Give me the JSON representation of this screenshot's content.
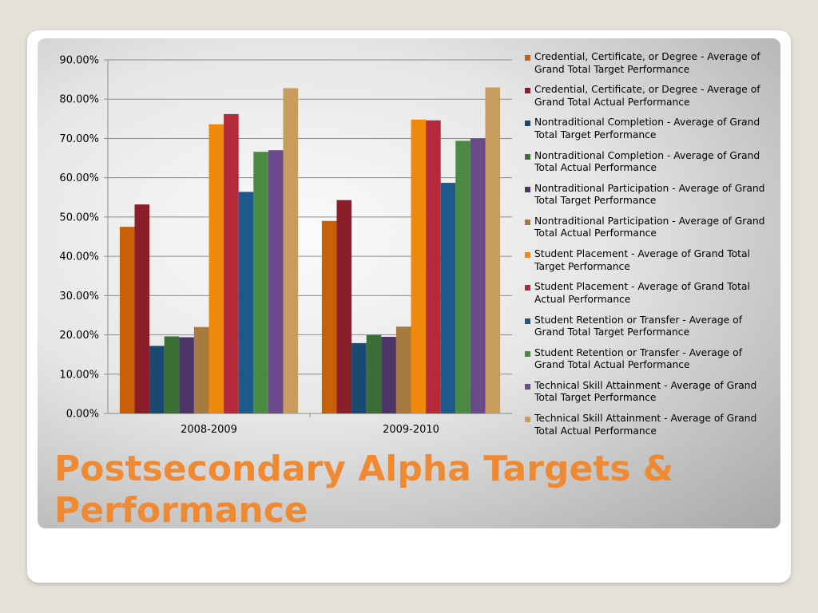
{
  "slide": {
    "title": "Postsecondary Alpha Targets & Performance"
  },
  "colors": {
    "background": "#e4e1d8",
    "title": "#ef8a33"
  },
  "chart_data": {
    "type": "bar",
    "categories": [
      "2008-2009",
      "2009-2010"
    ],
    "ylim": [
      0,
      0.9
    ],
    "y_ticks": [
      "0.00%",
      "10.00%",
      "20.00%",
      "30.00%",
      "40.00%",
      "50.00%",
      "60.00%",
      "70.00%",
      "80.00%",
      "90.00%"
    ],
    "grid": true,
    "legend_position": "right",
    "series": [
      {
        "name": "Credential, Certificate, or Degree - Average of Grand Total Target Performance",
        "color": "#c8600a",
        "values": [
          0.475,
          0.49
        ]
      },
      {
        "name": "Credential, Certificate, or Degree - Average of Grand Total Actual Performance",
        "color": "#8b1e2a",
        "values": [
          0.532,
          0.543
        ]
      },
      {
        "name": "Nontraditional Completion - Average of Grand Total Target Performance",
        "color": "#1a4a70",
        "values": [
          0.172,
          0.179
        ]
      },
      {
        "name": "Nontraditional Completion - Average of Grand Total Actual Performance",
        "color": "#3a7035",
        "values": [
          0.196,
          0.2
        ]
      },
      {
        "name": "Nontraditional Participation - Average of Grand Total Target Performance",
        "color": "#4a3565",
        "values": [
          0.194,
          0.195
        ]
      },
      {
        "name": "Nontraditional Participation - Average of Grand Total Actual Performance",
        "color": "#a87a40",
        "values": [
          0.22,
          0.221
        ]
      },
      {
        "name": "Student Placement - Average of Grand Total Target Performance",
        "color": "#f0880e",
        "values": [
          0.736,
          0.748
        ]
      },
      {
        "name": "Student Placement - Average of Grand Total Actual Performance",
        "color": "#b52a3a",
        "values": [
          0.762,
          0.746
        ]
      },
      {
        "name": "Student Retention or Transfer - Average of Grand Total Target Performance",
        "color": "#1d5a8a",
        "values": [
          0.564,
          0.587
        ]
      },
      {
        "name": "Student Retention or Transfer - Average of Grand Total Actual Performance",
        "color": "#4a8a42",
        "values": [
          0.666,
          0.694
        ]
      },
      {
        "name": "Technical Skill Attainment - Average of Grand Total Target Performance",
        "color": "#6a4a8a",
        "values": [
          0.67,
          0.7
        ]
      },
      {
        "name": "Technical Skill Attainment - Average of Grand Total Actual Performance",
        "color": "#c99b5c",
        "values": [
          0.828,
          0.83
        ]
      }
    ]
  }
}
